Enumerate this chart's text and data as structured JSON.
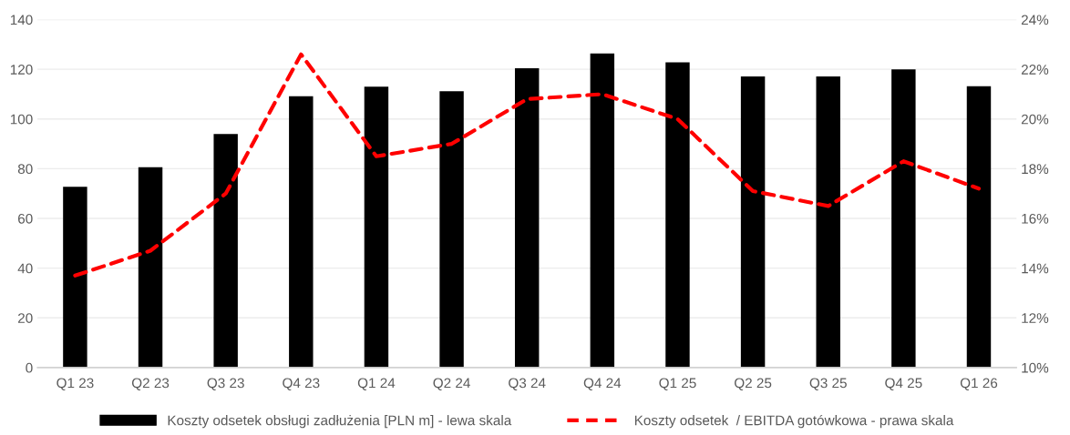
{
  "chart_data": {
    "type": "bar",
    "categories": [
      "Q1 23",
      "Q2 23",
      "Q3 23",
      "Q4 23",
      "Q1 24",
      "Q2 24",
      "Q3 24",
      "Q4 24",
      "Q1 25",
      "Q2 25",
      "Q3 25",
      "Q4 25",
      "Q1 26"
    ],
    "series": [
      {
        "name": "Koszty odsetek obsługi zadłużenia [PLN m] - lewa skala",
        "color": "#000000",
        "values": [
          72.7,
          80.6,
          94,
          109.2,
          113,
          111.2,
          120.4,
          126.4,
          122.8,
          117.1,
          117.1,
          120,
          113.2
        ]
      },
      {
        "name": "Koszty odsetek  / EBITDA gotówkowa - prawa skala",
        "type": "line",
        "axis": "y2",
        "color": "#ff0000",
        "line_style": "dashed",
        "values": [
          13.7,
          14.7,
          17.0,
          22.6,
          18.5,
          19.0,
          20.8,
          21.0,
          20.0,
          17.1,
          16.5,
          18.3,
          17.2
        ]
      }
    ],
    "ylim": [
      0,
      140
    ],
    "yticks": [
      0,
      20,
      40,
      60,
      80,
      100,
      120,
      140
    ],
    "y2lim": [
      10,
      24
    ],
    "y2ticks": [
      {
        "value": 10,
        "label": "10%"
      },
      {
        "value": 12,
        "label": "12%"
      },
      {
        "value": 14,
        "label": "14%"
      },
      {
        "value": 16,
        "label": "16%"
      },
      {
        "value": 18,
        "label": "18%"
      },
      {
        "value": 20,
        "label": "20%"
      },
      {
        "value": 22,
        "label": "22%"
      },
      {
        "value": 24,
        "label": "24%"
      }
    ],
    "grid": "y",
    "legend": "bottom"
  }
}
